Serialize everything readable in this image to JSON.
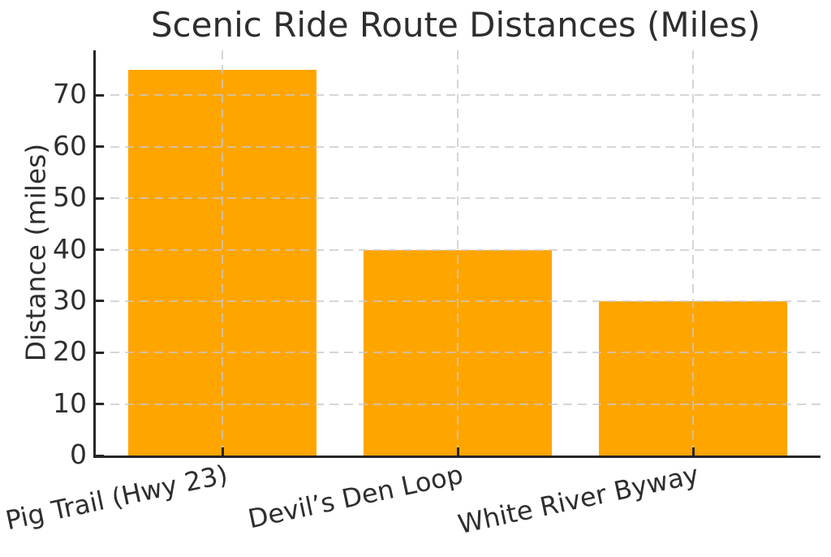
{
  "chart_data": {
    "type": "bar",
    "title": "Scenic Ride Route Distances (Miles)",
    "xlabel": "",
    "ylabel": "Distance (miles)",
    "categories": [
      "Pig Trail (Hwy 23)",
      "Devil’s Den Loop",
      "White River Byway"
    ],
    "values": [
      75,
      40,
      30
    ],
    "yticks": [
      0,
      10,
      20,
      30,
      40,
      50,
      60,
      70
    ],
    "ylim": [
      0,
      78.75
    ],
    "grid": "dashed, horizontal and vertical, drawn over bars",
    "legend": "none",
    "colors": {
      "bar": "#ffa500",
      "grid": "#c8c8c8",
      "spine": "#262626",
      "text": "#2e2e2e",
      "background": "#ffffff"
    }
  }
}
